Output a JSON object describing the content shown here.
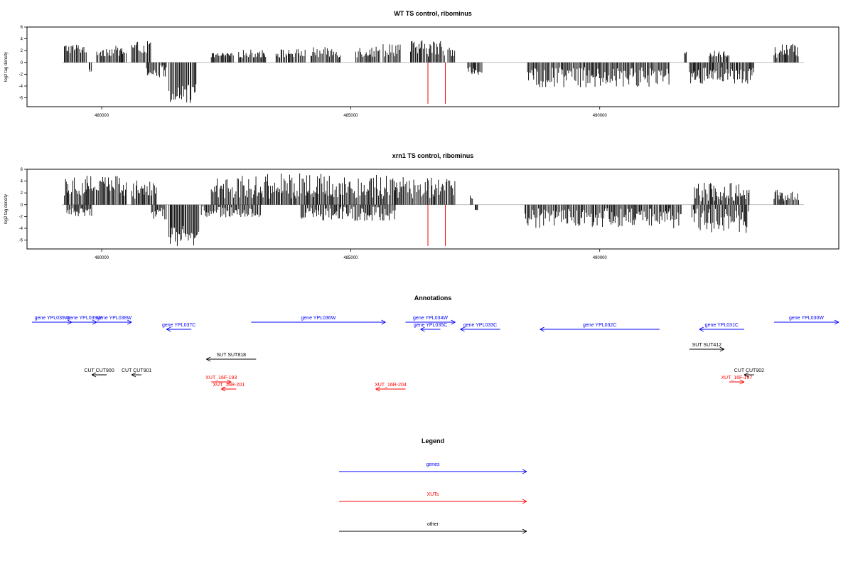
{
  "chart_data": [
    {
      "type": "bar",
      "title": "WT TS control, ribominus",
      "xlabel": "",
      "ylabel": "log2 tag density",
      "xlim": [
        478500,
        494800
      ],
      "ylim": [
        -7.5,
        6
      ],
      "x_ticks": [
        480000,
        485000,
        490000
      ],
      "y_ticks": [
        6,
        4,
        2,
        0,
        -2,
        -4,
        -6
      ],
      "x_tick_labels": [
        "480000",
        "485000",
        "490000"
      ],
      "y_tick_labels": [
        "6",
        "4",
        "2",
        "0",
        "-2",
        "-4",
        "-6"
      ],
      "baseline_range": [
        479200,
        494100
      ],
      "segments": [
        {
          "from": 479250,
          "to": 479700,
          "sign": 1,
          "min": 1.5,
          "max": 3.2
        },
        {
          "from": 479750,
          "to": 479800,
          "sign": -1,
          "min": 1,
          "max": 1.6
        },
        {
          "from": 479900,
          "to": 480500,
          "sign": 1,
          "min": 1,
          "max": 2.8
        },
        {
          "from": 480600,
          "to": 481000,
          "sign": 1,
          "min": 1.5,
          "max": 3.6
        },
        {
          "from": 480900,
          "to": 481300,
          "sign": -1,
          "min": 0.5,
          "max": 2.5
        },
        {
          "from": 481350,
          "to": 481900,
          "sign": -1,
          "min": 3.5,
          "max": 7.0
        },
        {
          "from": 482200,
          "to": 482650,
          "sign": 1,
          "min": 0.8,
          "max": 1.6
        },
        {
          "from": 482750,
          "to": 483300,
          "sign": 1,
          "min": 0.8,
          "max": 2.2
        },
        {
          "from": 483500,
          "to": 484100,
          "sign": 1,
          "min": 0.8,
          "max": 2.3
        },
        {
          "from": 484200,
          "to": 484800,
          "sign": 1,
          "min": 0.8,
          "max": 2.6
        },
        {
          "from": 485100,
          "to": 485600,
          "sign": 1,
          "min": 0.8,
          "max": 2.8
        },
        {
          "from": 485650,
          "to": 486000,
          "sign": 1,
          "min": 1.0,
          "max": 3.7
        },
        {
          "from": 486200,
          "to": 486900,
          "sign": 1,
          "min": 1.0,
          "max": 3.8
        },
        {
          "from": 486950,
          "to": 487100,
          "sign": 1,
          "min": 1.0,
          "max": 3.0
        },
        {
          "from": 487350,
          "to": 487650,
          "sign": -1,
          "min": 0.8,
          "max": 2.2
        },
        {
          "from": 488550,
          "to": 491400,
          "sign": -1,
          "min": 0.8,
          "max": 4.2
        },
        {
          "from": 491700,
          "to": 491750,
          "sign": 1,
          "min": 1.5,
          "max": 2.0
        },
        {
          "from": 491800,
          "to": 493100,
          "sign": -1,
          "min": 0.8,
          "max": 3.6
        },
        {
          "from": 492200,
          "to": 492600,
          "sign": 1,
          "min": 0.8,
          "max": 2.0
        },
        {
          "from": 493500,
          "to": 494000,
          "sign": 1,
          "min": 0.8,
          "max": 3.2
        }
      ],
      "markers": [
        {
          "x": 486550,
          "y": -7,
          "color": "#ff0000"
        },
        {
          "x": 486900,
          "y": -7,
          "color": "#ff0000"
        }
      ]
    },
    {
      "type": "bar",
      "title": "xrn1 TS control, ribominus",
      "xlabel": "",
      "ylabel": "log2 tag density",
      "xlim": [
        478500,
        494800
      ],
      "ylim": [
        -7.5,
        6
      ],
      "x_ticks": [
        480000,
        485000,
        490000
      ],
      "y_ticks": [
        6,
        4,
        2,
        0,
        -2,
        -4,
        -6
      ],
      "x_tick_labels": [
        "480000",
        "485000",
        "490000"
      ],
      "y_tick_labels": [
        "6",
        "4",
        "2",
        "0",
        "-2",
        "-4",
        "-6"
      ],
      "baseline_range": [
        479200,
        494100
      ],
      "segments": [
        {
          "from": 479250,
          "to": 480500,
          "sign": 1,
          "min": 1.5,
          "max": 5.2
        },
        {
          "from": 479300,
          "to": 479800,
          "sign": -1,
          "min": 0.5,
          "max": 2.0
        },
        {
          "from": 480600,
          "to": 481100,
          "sign": 1,
          "min": 1.0,
          "max": 4.8
        },
        {
          "from": 481000,
          "to": 481300,
          "sign": -1,
          "min": 0.5,
          "max": 2.5
        },
        {
          "from": 481350,
          "to": 481950,
          "sign": -1,
          "min": 3.5,
          "max": 7.0
        },
        {
          "from": 482200,
          "to": 485900,
          "sign": 1,
          "min": 1.0,
          "max": 5.3
        },
        {
          "from": 482000,
          "to": 483200,
          "sign": -1,
          "min": 0.3,
          "max": 2.2
        },
        {
          "from": 484000,
          "to": 485900,
          "sign": -1,
          "min": 0.3,
          "max": 2.8
        },
        {
          "from": 485900,
          "to": 487100,
          "sign": 1,
          "min": 1.0,
          "max": 4.8
        },
        {
          "from": 487400,
          "to": 487450,
          "sign": 1,
          "min": 1.0,
          "max": 1.7
        },
        {
          "from": 487500,
          "to": 487550,
          "sign": -1,
          "min": 0.5,
          "max": 1.0
        },
        {
          "from": 488500,
          "to": 491650,
          "sign": -1,
          "min": 0.6,
          "max": 4.0
        },
        {
          "from": 491850,
          "to": 493000,
          "sign": -1,
          "min": 0.6,
          "max": 4.8
        },
        {
          "from": 491900,
          "to": 493000,
          "sign": 1,
          "min": 0.6,
          "max": 3.8
        },
        {
          "from": 493500,
          "to": 494000,
          "sign": 1,
          "min": 0.6,
          "max": 2.5
        }
      ],
      "markers": [
        {
          "x": 486550,
          "y": -7,
          "color": "#ff0000"
        },
        {
          "x": 486900,
          "y": -7,
          "color": "#ff0000"
        }
      ]
    }
  ],
  "annotations": {
    "title": "Annotations",
    "colors": {
      "gene": "#0000ff",
      "xut": "#ff0000",
      "other": "#000000"
    },
    "features": [
      {
        "label": "gene YPL039W",
        "kind": "gene",
        "row": 0,
        "start": 478600,
        "end": 479400,
        "strand": "+"
      },
      {
        "label": "gene YPL039W",
        "kind": "gene",
        "row": 0,
        "start": 479400,
        "end": 479900,
        "strand": "+"
      },
      {
        "label": "gene YPL038W",
        "kind": "gene",
        "row": 0,
        "start": 479900,
        "end": 480600,
        "strand": "+"
      },
      {
        "label": "gene YPL036W",
        "kind": "gene",
        "row": 0,
        "start": 483000,
        "end": 485700,
        "strand": "+"
      },
      {
        "label": "gene YPL034W",
        "kind": "gene",
        "row": 0,
        "start": 486100,
        "end": 487100,
        "strand": "+"
      },
      {
        "label": "gene YPL030W",
        "kind": "gene",
        "row": 0,
        "start": 493500,
        "end": 494800,
        "strand": "+"
      },
      {
        "label": "gene YPL037C",
        "kind": "gene",
        "row": 1,
        "start": 481300,
        "end": 481800,
        "strand": "-"
      },
      {
        "label": "gene YPL035C",
        "kind": "gene",
        "row": 1,
        "start": 486400,
        "end": 486800,
        "strand": "-"
      },
      {
        "label": "gene YPL033C",
        "kind": "gene",
        "row": 1,
        "start": 487200,
        "end": 488000,
        "strand": "-"
      },
      {
        "label": "gene YPL032C",
        "kind": "gene",
        "row": 1,
        "start": 488800,
        "end": 491200,
        "strand": "-"
      },
      {
        "label": "gene YPL031C",
        "kind": "gene",
        "row": 1,
        "start": 492000,
        "end": 492900,
        "strand": "-"
      },
      {
        "label": "SUT SUT818",
        "kind": "other",
        "row": 3,
        "start": 482100,
        "end": 483100,
        "strand": "-"
      },
      {
        "label": "SUT SUT412",
        "kind": "other",
        "row": 2,
        "start": 491800,
        "end": 492500,
        "strand": "+"
      },
      {
        "label": "CUT CUT900",
        "kind": "other",
        "row": 4,
        "start": 479800,
        "end": 480100,
        "strand": "-"
      },
      {
        "label": "CUT CUT901",
        "kind": "other",
        "row": 4,
        "start": 480600,
        "end": 480800,
        "strand": "-"
      },
      {
        "label": "CUT CUT902",
        "kind": "other",
        "row": 4,
        "start": 492900,
        "end": 493100,
        "strand": "-"
      },
      {
        "label": "XUT_16F-193",
        "kind": "xut",
        "row": 5,
        "start": 482200,
        "end": 482600,
        "strand": "+"
      },
      {
        "label": "XUT_16R-201",
        "kind": "xut",
        "row": 6,
        "start": 482400,
        "end": 482700,
        "strand": "-"
      },
      {
        "label": "XUT_16R-204",
        "kind": "xut",
        "row": 6,
        "start": 485500,
        "end": 486100,
        "strand": "-"
      },
      {
        "label": "XUT_16F-197",
        "kind": "xut",
        "row": 5,
        "start": 492600,
        "end": 492900,
        "strand": "+"
      }
    ]
  },
  "legend": {
    "title": "Legend",
    "items": [
      {
        "label": "genes",
        "color": "#0000ff"
      },
      {
        "label": "XUTs",
        "color": "#ff0000"
      },
      {
        "label": "other",
        "color": "#000000"
      }
    ]
  }
}
